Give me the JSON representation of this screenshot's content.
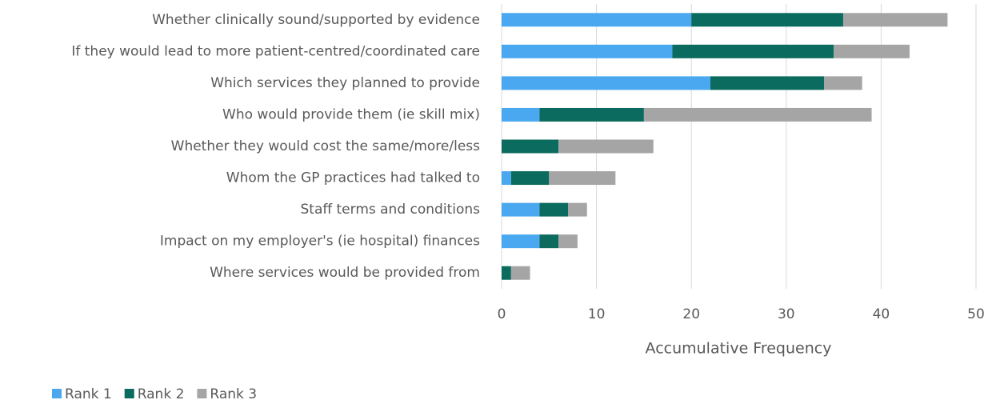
{
  "chart_data": {
    "type": "stacked-bar-horizontal",
    "categories": [
      "Whether clinically sound/supported by evidence",
      "If they would lead to more patient-centred/coordinated care",
      "Which services they planned to provide",
      "Who would provide them (ie skill mix)",
      "Whether they would cost the same/more/less",
      "Whom the GP practices had talked to",
      "Staff terms and conditions",
      "Impact on my employer's (ie hospital) finances",
      "Where services would be provided from"
    ],
    "series": [
      {
        "name": "Rank 1",
        "color": "#4aa8f0",
        "values": [
          20,
          18,
          22,
          4,
          0,
          1,
          4,
          4,
          0
        ]
      },
      {
        "name": "Rank 2",
        "color": "#0b6b5e",
        "values": [
          16,
          17,
          12,
          11,
          6,
          4,
          3,
          2,
          1
        ]
      },
      {
        "name": "Rank 3",
        "color": "#a5a5a5",
        "values": [
          11,
          8,
          4,
          24,
          10,
          7,
          2,
          2,
          2
        ]
      }
    ],
    "xlabel": "Accumulative Frequency",
    "xlim": [
      0,
      50
    ],
    "xticks": [
      0,
      10,
      20,
      30,
      40,
      50
    ],
    "grid": true,
    "legend": "bottom-left"
  }
}
